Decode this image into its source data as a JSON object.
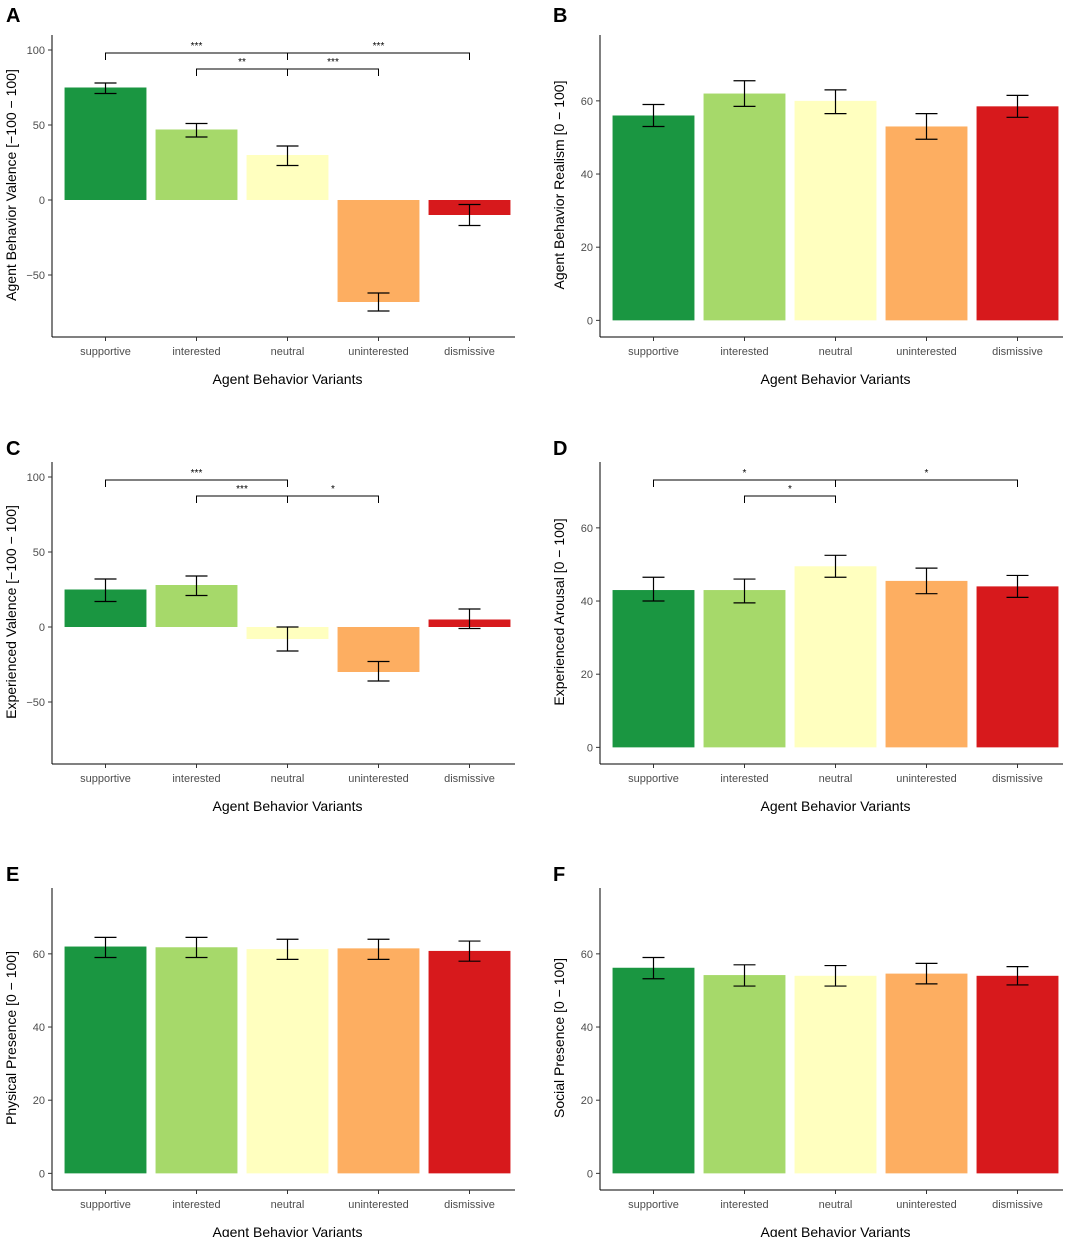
{
  "chart_data": [
    {
      "panel": "A",
      "type": "bar",
      "categories": [
        "supportive",
        "interested",
        "neutral",
        "uninterested",
        "dismissive"
      ],
      "values": [
        75,
        47,
        30,
        -68,
        -10
      ],
      "error": [
        [
          71,
          78
        ],
        [
          42,
          51
        ],
        [
          23,
          36
        ],
        [
          -74,
          -62
        ],
        [
          -17,
          -3
        ]
      ],
      "colors": [
        "#1a9641",
        "#a6d96a",
        "#ffffbf",
        "#fdae61",
        "#d7191c"
      ],
      "xlabel": "Agent Behavior Variants",
      "ylabel": "Agent Behavior Valence [−100 − 100]",
      "ylim": [
        -90,
        110
      ],
      "yticks": [
        100,
        50,
        0,
        -50
      ],
      "yticklabels": [
        "100",
        "50",
        "0",
        "−50"
      ],
      "significance": [
        {
          "from": 0,
          "to": 2,
          "label": "***",
          "level": 0
        },
        {
          "from": 1,
          "to": 2,
          "label": "**",
          "level": 1
        },
        {
          "from": 2,
          "to": 4,
          "label": "***",
          "level": 0
        },
        {
          "from": 2,
          "to": 3,
          "label": "***",
          "level": 1
        }
      ]
    },
    {
      "panel": "B",
      "type": "bar",
      "categories": [
        "supportive",
        "interested",
        "neutral",
        "uninterested",
        "dismissive"
      ],
      "values": [
        56,
        62,
        60,
        53,
        58.5
      ],
      "error": [
        [
          53,
          59
        ],
        [
          58.5,
          65.5
        ],
        [
          56.5,
          63
        ],
        [
          49.5,
          56.5
        ],
        [
          55.5,
          61.5
        ]
      ],
      "colors": [
        "#1a9641",
        "#a6d96a",
        "#ffffbf",
        "#fdae61",
        "#d7191c"
      ],
      "xlabel": "Agent Behavior Variants",
      "ylabel": "Agent Behavior Realism [0 − 100]",
      "ylim": [
        -4,
        78
      ],
      "yticks": [
        0,
        20,
        40,
        60
      ],
      "yticklabels": [
        "0",
        "20",
        "40",
        "60"
      ],
      "significance": []
    },
    {
      "panel": "C",
      "type": "bar",
      "categories": [
        "supportive",
        "interested",
        "neutral",
        "uninterested",
        "dismissive"
      ],
      "values": [
        25,
        28,
        -8,
        -30,
        5
      ],
      "error": [
        [
          17,
          32
        ],
        [
          21,
          34
        ],
        [
          -16,
          0
        ],
        [
          -36,
          -23
        ],
        [
          -1,
          12
        ]
      ],
      "colors": [
        "#1a9641",
        "#a6d96a",
        "#ffffbf",
        "#fdae61",
        "#d7191c"
      ],
      "xlabel": "Agent Behavior Variants",
      "ylabel": "Experienced Valence [−100 − 100]",
      "ylim": [
        -90,
        110
      ],
      "yticks": [
        100,
        50,
        0,
        -50
      ],
      "yticklabels": [
        "100",
        "50",
        "0",
        "−50"
      ],
      "significance": [
        {
          "from": 0,
          "to": 2,
          "label": "***",
          "level": 0
        },
        {
          "from": 1,
          "to": 2,
          "label": "***",
          "level": 1
        },
        {
          "from": 2,
          "to": 3,
          "label": "*",
          "level": 1
        }
      ]
    },
    {
      "panel": "D",
      "type": "bar",
      "categories": [
        "supportive",
        "interested",
        "neutral",
        "uninterested",
        "dismissive"
      ],
      "values": [
        43,
        43,
        49.5,
        45.5,
        44
      ],
      "error": [
        [
          40,
          46.5
        ],
        [
          39.5,
          46
        ],
        [
          46.5,
          52.5
        ],
        [
          42,
          49
        ],
        [
          41,
          47
        ]
      ],
      "colors": [
        "#1a9641",
        "#a6d96a",
        "#ffffbf",
        "#fdae61",
        "#d7191c"
      ],
      "xlabel": "Agent Behavior Variants",
      "ylabel": "Experienced Arousal [0 − 100]",
      "ylim": [
        -4,
        78
      ],
      "yticks": [
        0,
        20,
        40,
        60
      ],
      "yticklabels": [
        "0",
        "20",
        "40",
        "60"
      ],
      "significance": [
        {
          "from": 0,
          "to": 2,
          "label": "*",
          "level": 0
        },
        {
          "from": 1,
          "to": 2,
          "label": "*",
          "level": 1
        },
        {
          "from": 2,
          "to": 4,
          "label": "*",
          "level": 0
        }
      ]
    },
    {
      "panel": "E",
      "type": "bar",
      "categories": [
        "supportive",
        "interested",
        "neutral",
        "uninterested",
        "dismissive"
      ],
      "values": [
        62,
        61.8,
        61.3,
        61.5,
        60.8
      ],
      "error": [
        [
          59,
          64.5
        ],
        [
          59,
          64.5
        ],
        [
          58.5,
          64
        ],
        [
          58.5,
          64
        ],
        [
          58,
          63.5
        ]
      ],
      "colors": [
        "#1a9641",
        "#a6d96a",
        "#ffffbf",
        "#fdae61",
        "#d7191c"
      ],
      "xlabel": "Agent Behavior Variants",
      "ylabel": "Physical Presence [0 − 100]",
      "ylim": [
        -4,
        78
      ],
      "yticks": [
        0,
        20,
        40,
        60
      ],
      "yticklabels": [
        "0",
        "20",
        "40",
        "60"
      ],
      "significance": []
    },
    {
      "panel": "F",
      "type": "bar",
      "categories": [
        "supportive",
        "interested",
        "neutral",
        "uninterested",
        "dismissive"
      ],
      "values": [
        56.2,
        54.2,
        54,
        54.6,
        54
      ],
      "error": [
        [
          53.2,
          59
        ],
        [
          51.2,
          57
        ],
        [
          51.2,
          56.8
        ],
        [
          51.8,
          57.4
        ],
        [
          51.5,
          56.5
        ]
      ],
      "colors": [
        "#1a9641",
        "#a6d96a",
        "#ffffbf",
        "#fdae61",
        "#d7191c"
      ],
      "xlabel": "Agent Behavior Variants",
      "ylabel": "Social Presence [0 − 100]",
      "ylim": [
        -4,
        78
      ],
      "yticks": [
        0,
        20,
        40,
        60
      ],
      "yticklabels": [
        "0",
        "20",
        "40",
        "60"
      ],
      "significance": []
    }
  ]
}
